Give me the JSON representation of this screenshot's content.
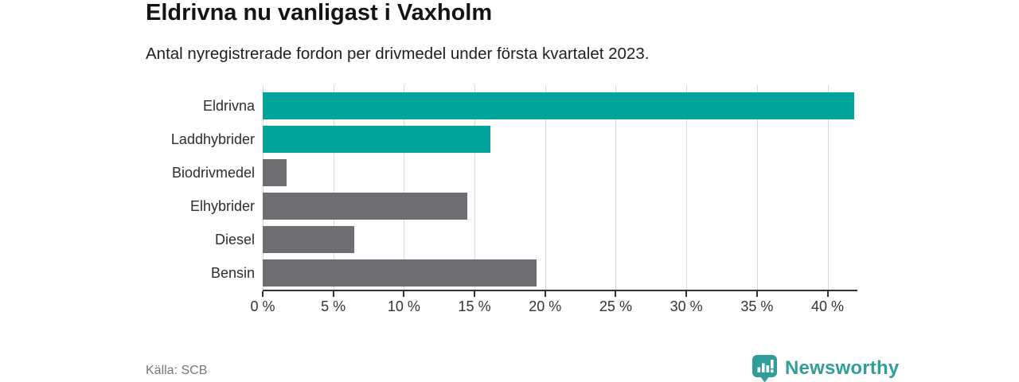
{
  "header": {
    "title": "Eldrivna nu vanligast i Vaxholm",
    "subtitle": "Antal nyregistrerade fordon per drivmedel under första kvartalet 2023."
  },
  "footer": {
    "source": "Källa: SCB",
    "brand": "Newsworthy"
  },
  "colors": {
    "accent_teal": "#00a49a",
    "muted_gray_bar": "#6e6e72",
    "brand_teal": "#2f9e98",
    "gridline": "#d9d9d9",
    "axis": "#323232"
  },
  "chart_data": {
    "type": "bar",
    "orientation": "horizontal",
    "title": "Eldrivna nu vanligast i Vaxholm",
    "subtitle": "Antal nyregistrerade fordon per drivmedel under första kvartalet 2023.",
    "categories": [
      "Eldrivna",
      "Laddhybrider",
      "Biodrivmedel",
      "Elhybrider",
      "Diesel",
      "Bensin"
    ],
    "values": [
      41.9,
      16.1,
      1.7,
      14.5,
      6.5,
      19.4
    ],
    "unit": "%",
    "bar_colors": [
      "#00a49a",
      "#00a49a",
      "#6e6e72",
      "#6e6e72",
      "#6e6e72",
      "#6e6e72"
    ],
    "xlabel": "",
    "ylabel": "",
    "xlim": [
      0,
      42
    ],
    "x_tick_values": [
      0,
      5,
      10,
      15,
      20,
      25,
      30,
      35,
      40
    ],
    "x_tick_labels": [
      "0 %",
      "5 %",
      "10 %",
      "15 %",
      "20 %",
      "25 %",
      "30 %",
      "35 %",
      "40 %"
    ],
    "grid": "vertical",
    "legend": "none",
    "source": "Källa: SCB"
  }
}
